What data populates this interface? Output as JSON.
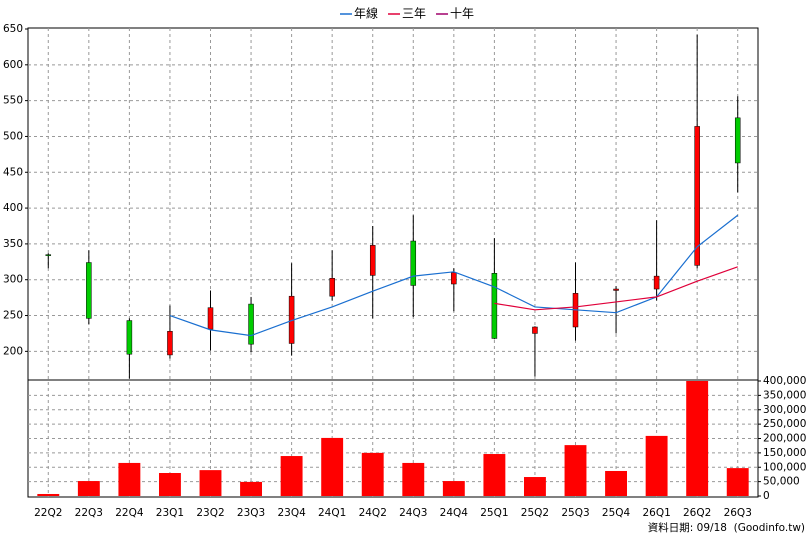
{
  "chart_data": [
    {
      "type": "candlestick",
      "open": [
        335,
        324,
        243,
        195,
        231,
        266,
        211,
        277,
        306,
        354,
        294,
        309,
        225,
        234,
        285,
        287,
        320,
        526
      ],
      "high": [
        337,
        341,
        246,
        264,
        285,
        276,
        323,
        341,
        375,
        390,
        316,
        358,
        235,
        324,
        291,
        383,
        642,
        556
      ],
      "low": [
        316,
        238,
        162,
        190,
        201,
        199,
        194,
        271,
        246,
        248,
        256,
        217,
        165,
        215,
        225,
        271,
        316,
        422
      ],
      "close": [
        334,
        246,
        196,
        228,
        261,
        210,
        277,
        302,
        348,
        292,
        310,
        218,
        234,
        281,
        287,
        305,
        514,
        463
      ],
      "up_color": "#ff0000",
      "down_color": "#00cc00",
      "series": [
        {
          "name": "年線",
          "color": "#1a6fd0",
          "values": [
            null,
            null,
            null,
            250,
            230,
            222,
            243,
            262,
            284,
            305,
            311,
            290,
            262,
            258,
            254,
            276,
            346,
            390
          ]
        },
        {
          "name": "三年",
          "color": "#e0003a",
          "values": [
            null,
            null,
            null,
            null,
            null,
            null,
            null,
            null,
            null,
            null,
            null,
            267,
            258,
            262,
            269,
            276,
            298,
            318
          ]
        },
        {
          "name": "十年",
          "color": "#a0006a",
          "values": [
            null,
            null,
            null,
            null,
            null,
            null,
            null,
            null,
            null,
            null,
            null,
            null,
            null,
            null,
            null,
            null,
            null,
            null
          ]
        }
      ],
      "ylim": [
        160,
        650
      ],
      "yticks": [
        200,
        250,
        300,
        350,
        400,
        450,
        500,
        550,
        600,
        650
      ],
      "grid": true,
      "legend": "top"
    },
    {
      "type": "bar",
      "categories": [
        "22Q2",
        "22Q3",
        "22Q4",
        "23Q1",
        "23Q2",
        "23Q3",
        "23Q4",
        "24Q1",
        "24Q2",
        "24Q3",
        "24Q4",
        "25Q1",
        "25Q2",
        "25Q3",
        "25Q4",
        "26Q1",
        "26Q2",
        "26Q3"
      ],
      "values": [
        7000,
        52000,
        115000,
        80000,
        90000,
        49000,
        139000,
        202000,
        150000,
        115000,
        52000,
        146000,
        66000,
        177000,
        87000,
        209000,
        400000,
        97000
      ],
      "color": "#ff0000",
      "ylim": [
        0,
        400000
      ],
      "yticks": [
        0,
        {
          "value": 50000,
          "label": "50,000"
        },
        {
          "value": 100000,
          "label": "100,000"
        },
        {
          "value": 150000,
          "label": "150,000"
        },
        {
          "value": 200000,
          "label": "200,000"
        },
        {
          "value": 250000,
          "label": "250,000"
        },
        {
          "value": 300000,
          "label": "300,000"
        },
        {
          "value": 350000,
          "label": "350,000"
        },
        {
          "value": 400000,
          "label": "400,000"
        }
      ],
      "grid": true
    }
  ],
  "footer": "資料日期: 09/18  (Goodinfo.tw)"
}
